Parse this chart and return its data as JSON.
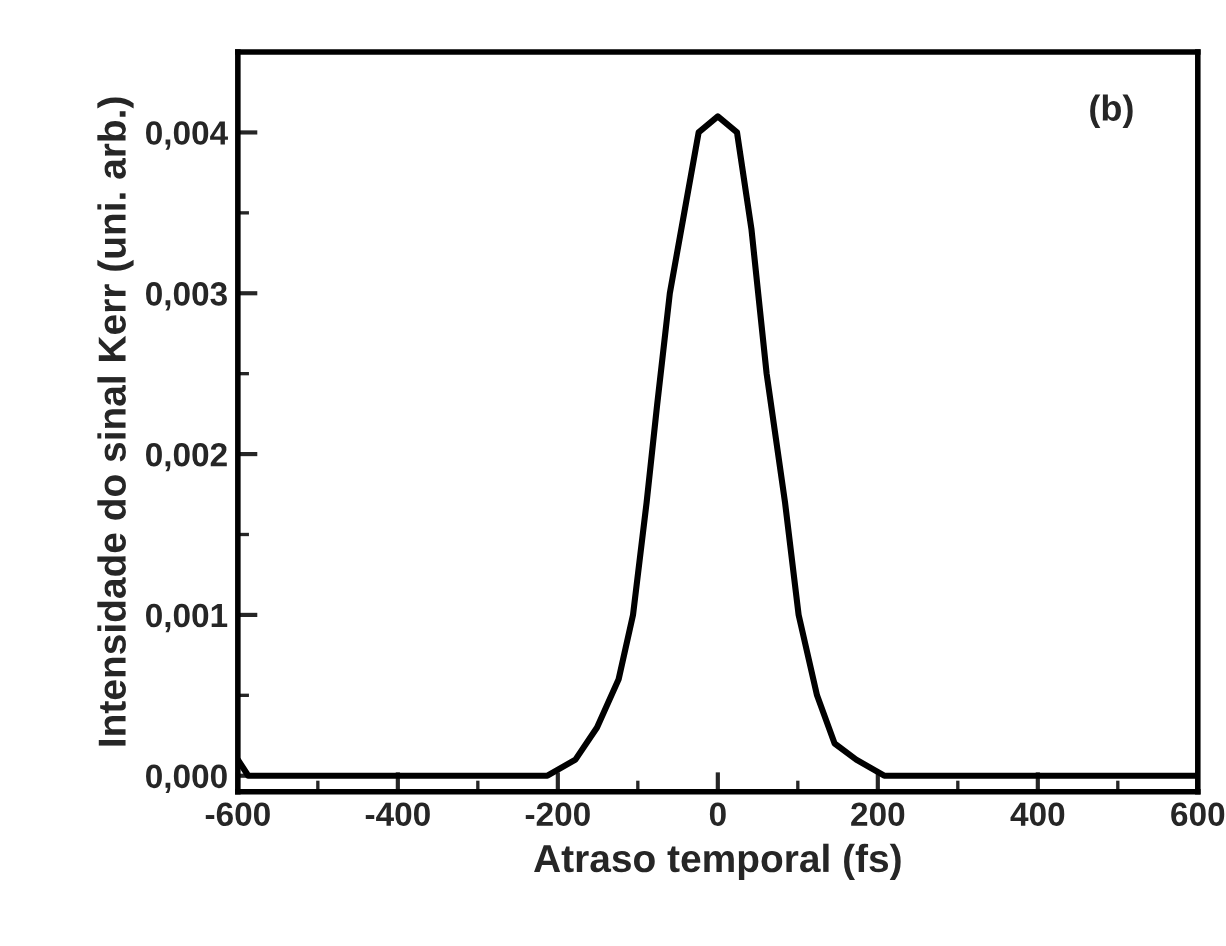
{
  "chart_data": {
    "type": "line",
    "xlabel": "Atraso temporal (fs)",
    "ylabel": "Intensidade do sinal Kerr (uni. arb.)",
    "annotations": [
      "(b)"
    ],
    "series": [
      {
        "color": "#000000",
        "x": [
          -600,
          -587,
          -542,
          -450,
          -329,
          -260,
          -213,
          -178,
          -151,
          -124,
          -106,
          -89,
          -76,
          -60,
          -42,
          -24,
          0,
          24,
          42,
          61,
          84,
          101,
          124,
          146,
          173,
          208,
          235,
          400,
          600
        ],
        "values": [
          0.0001,
          0.0,
          0.0,
          0.0,
          0.0,
          0.0,
          0.0,
          0.0001,
          0.0003,
          0.0006,
          0.001,
          0.0017,
          0.0023,
          0.003,
          0.0035,
          0.004,
          0.0041,
          0.004,
          0.0034,
          0.0025,
          0.0017,
          0.001,
          0.0005,
          0.0002,
          0.0001,
          0.0,
          0.0,
          0.0,
          0.0
        ]
      }
    ],
    "xlim": [
      -600,
      600
    ],
    "ylim": [
      -0.0001,
      0.0045
    ],
    "xticks": [
      -600,
      -400,
      -200,
      0,
      200,
      400,
      600
    ],
    "yticks": [
      {
        "value": 0,
        "label": "0,000"
      },
      {
        "value": 0.001,
        "label": "0,001"
      },
      {
        "value": 0.002,
        "label": "0,002"
      },
      {
        "value": 0.003,
        "label": "0,003"
      },
      {
        "value": 0.004,
        "label": "0,004"
      }
    ],
    "marker": "none",
    "line_style": "solid"
  }
}
